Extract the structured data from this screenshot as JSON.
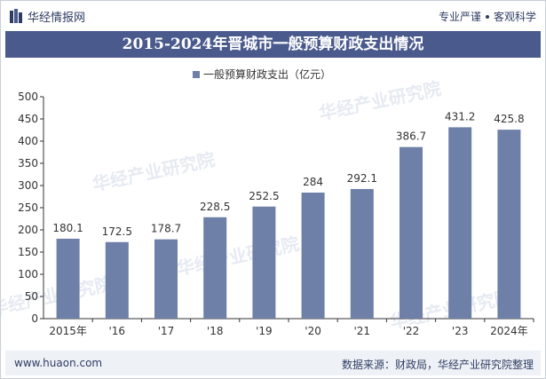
{
  "header": {
    "brand": "华经情报网",
    "slogan_left": "专业严谨",
    "slogan_right": "客观科学"
  },
  "watermark": "华经产业研究院",
  "footer": {
    "site": "www.huaon.com",
    "source": "数据来源：财政局，华经产业研究院整理"
  },
  "colors": {
    "bar": "#6e7fa8",
    "title_bg": "#4a5a8c",
    "text": "#2f3d63"
  },
  "chart_data": {
    "type": "bar",
    "title": "2015-2024年晋城市一般预算财政支出情况",
    "categories": [
      "2015年",
      "'16",
      "'17",
      "'18",
      "'19",
      "'20",
      "'21",
      "'22",
      "'23",
      "2024年"
    ],
    "series": [
      {
        "name": "一般预算财政支出（亿元）",
        "values": [
          180.1,
          172.5,
          178.7,
          228.5,
          252.5,
          284,
          292.1,
          386.7,
          431.2,
          425.8
        ]
      }
    ],
    "ylim": [
      0,
      500
    ],
    "yticks": [
      0,
      50,
      100,
      150,
      200,
      250,
      300,
      350,
      400,
      450,
      500
    ],
    "legend_position": "top-center",
    "grid": false
  }
}
